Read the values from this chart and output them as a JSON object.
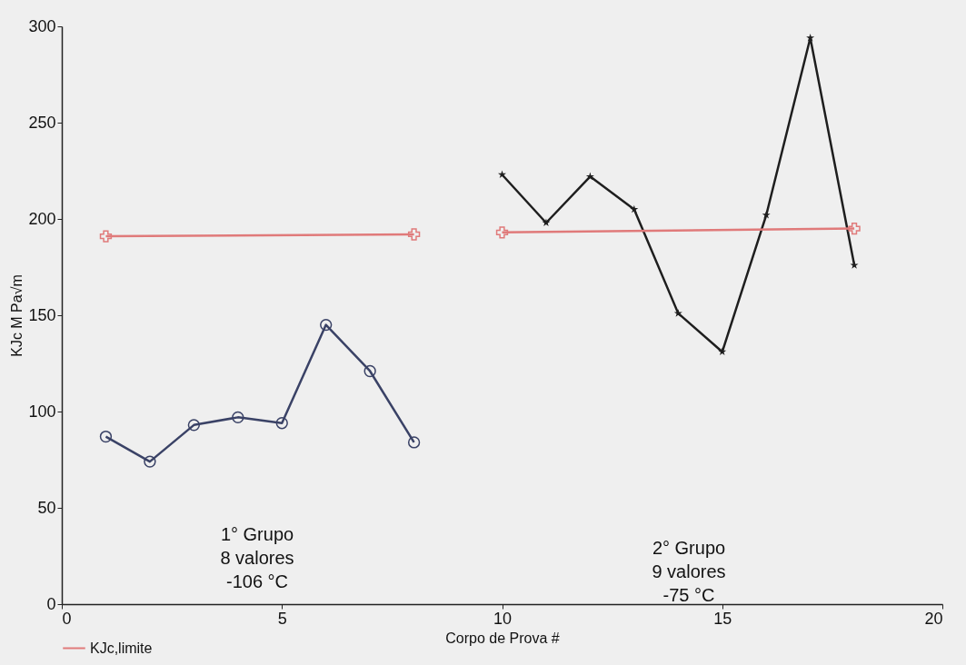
{
  "chart_data": {
    "type": "line",
    "xlabel": "Corpo de Prova #",
    "ylabel": "KJc M Pa√m",
    "xlim": [
      0,
      20
    ],
    "xticks": [
      0,
      5,
      10,
      15,
      20
    ],
    "ylim": [
      0,
      300
    ],
    "yticks": [
      0,
      50,
      100,
      150,
      200,
      250,
      300
    ],
    "grid": false,
    "legend": "bottom",
    "series": [
      {
        "color": "#3a4266",
        "marker": "circle",
        "x": [
          1,
          2,
          3,
          4,
          5,
          6,
          7,
          8
        ],
        "values": [
          87,
          74,
          93,
          97,
          94,
          145,
          121,
          84
        ]
      },
      {
        "color": "#1e1e1e",
        "marker": "star",
        "x": [
          10,
          11,
          12,
          13,
          14,
          15,
          16,
          17,
          18
        ],
        "values": [
          223,
          198,
          222,
          205,
          151,
          131,
          202,
          294,
          176
        ]
      },
      {
        "name": "KJc,limite",
        "color": "#e07a7a",
        "marker": "cross",
        "x": [
          1,
          8,
          9,
          10,
          18
        ],
        "values": [
          191,
          192,
          null,
          193,
          195
        ]
      }
    ],
    "annotations": [
      "1° Grupo\n8 valores\n-106 °C",
      "2° Grupo\n9 valores\n-75 °C"
    ]
  }
}
